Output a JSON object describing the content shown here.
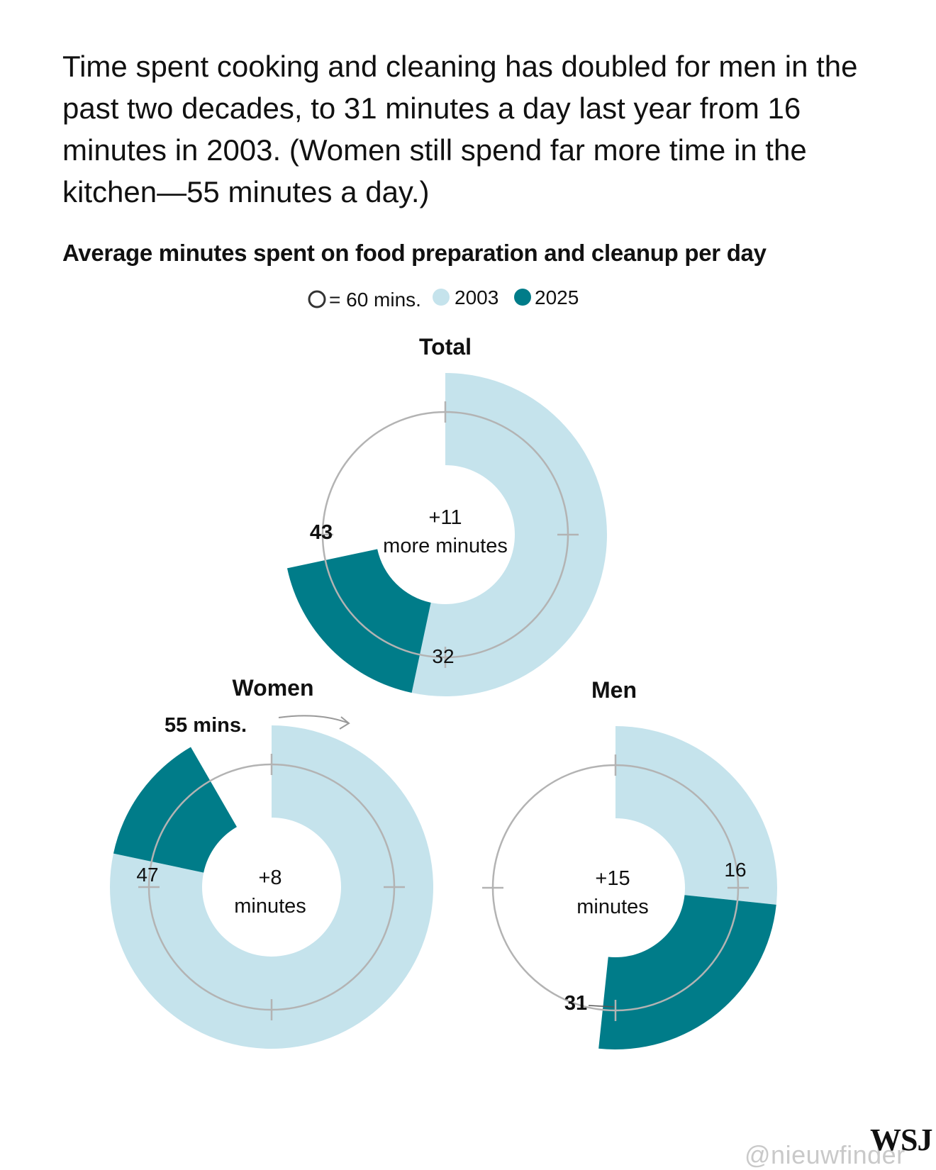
{
  "intro": "Time spent cooking and cleaning has doubled for men in the past two decades, to 31 minutes a day last year from 16 minutes in 2003. (Women still spend far more time in the kitchen—55 minutes a day.)",
  "subtitle": "Average minutes spent on food preparation and cleanup per day",
  "legend": {
    "ring_label": "= 60 mins.",
    "items": [
      {
        "label": "2003",
        "color": "#c5e3ec"
      },
      {
        "label": "2025",
        "color": "#007c89"
      }
    ]
  },
  "colors": {
    "y2003": "#c5e3ec",
    "y2025": "#007c89",
    "ring": "#b3b3b3"
  },
  "chart_data": [
    {
      "type": "radial-bar",
      "title": "Total",
      "scale_full_circle_minutes": 60,
      "values": {
        "2003": 32,
        "2025": 43
      },
      "value_labels": {
        "2003": "32",
        "2025": "43"
      },
      "center_text": [
        "+11",
        "more minutes"
      ]
    },
    {
      "type": "radial-bar",
      "title": "Women",
      "scale_full_circle_minutes": 60,
      "values": {
        "2003": 47,
        "2025": 55
      },
      "value_labels": {
        "2003": "47",
        "2025": "55 mins."
      },
      "center_text": [
        "+8",
        "minutes"
      ]
    },
    {
      "type": "radial-bar",
      "title": "Men",
      "scale_full_circle_minutes": 60,
      "values": {
        "2003": 16,
        "2025": 31
      },
      "value_labels": {
        "2003": "16",
        "2025": "31"
      },
      "center_text": [
        "+15",
        "minutes"
      ]
    }
  ],
  "watermark": "@nieuwfinder",
  "logo": "WSJ"
}
